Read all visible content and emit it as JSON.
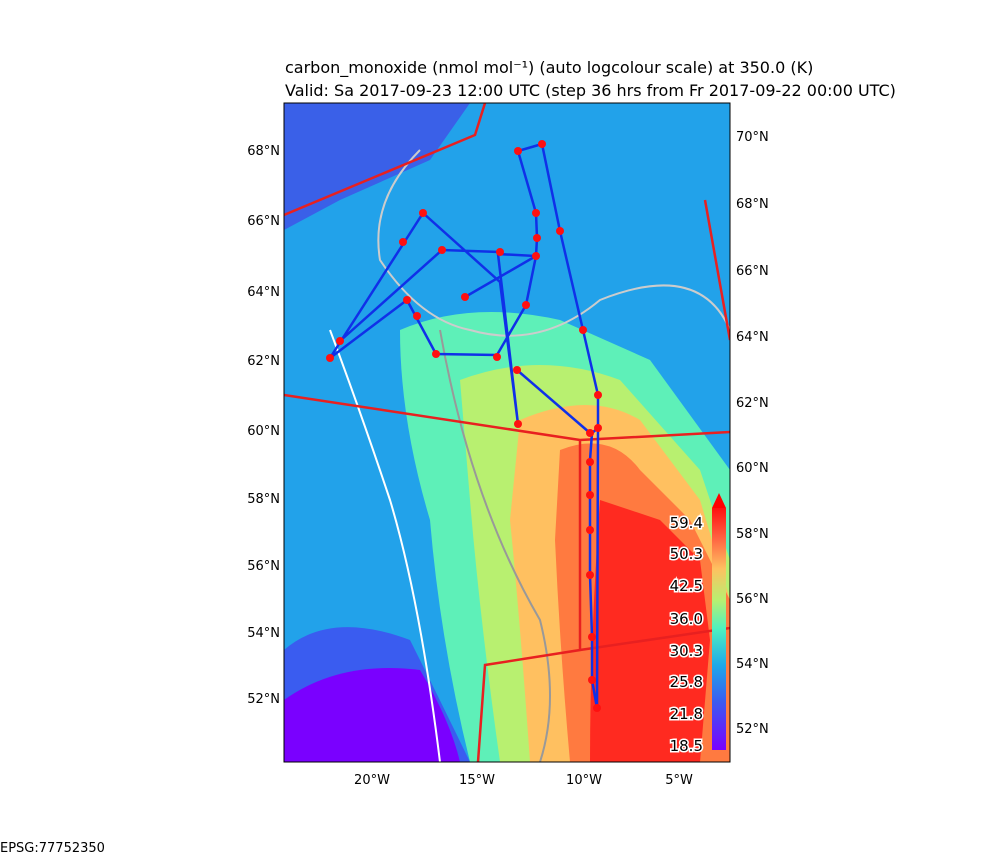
{
  "header": {
    "title": "carbon_monoxide (nmol mol⁻¹) (auto logcolour scale) at 350.0 (K)",
    "subtitle": "Valid: Sa 2017-09-23 12:00 UTC (step 36 hrs from Fr 2017-09-22 00:00 UTC)"
  },
  "map": {
    "left_lat_labels": [
      "68°N",
      "66°N",
      "64°N",
      "62°N",
      "60°N",
      "58°N",
      "56°N",
      "54°N",
      "52°N"
    ],
    "right_lat_labels": [
      "70°N",
      "68°N",
      "66°N",
      "64°N",
      "62°N",
      "60°N",
      "58°N",
      "56°N",
      "54°N",
      "52°N"
    ],
    "lon_labels": [
      "20°W",
      "15°W",
      "10°W",
      "5°W"
    ]
  },
  "colorbar": {
    "labels": [
      "59.4",
      "50.3",
      "42.5",
      "36.0",
      "30.3",
      "25.8",
      "21.8",
      "18.5"
    ]
  },
  "footer": {
    "projection": "EPSG:77752350"
  }
}
